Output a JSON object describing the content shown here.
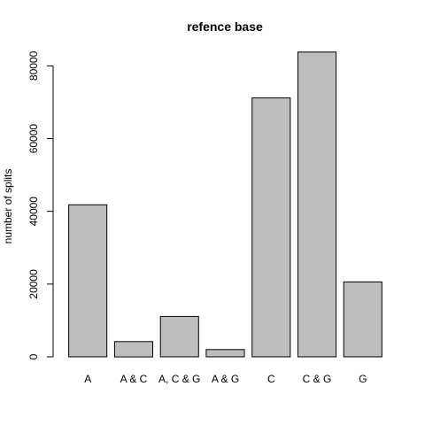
{
  "chart_data": {
    "type": "bar",
    "title": "refence base",
    "xlabel": "",
    "ylabel": "number of splits",
    "categories": [
      "A",
      "A & C",
      "A, C & G",
      "A & G",
      "C",
      "C & G",
      "G"
    ],
    "values": [
      41800,
      4200,
      11100,
      2000,
      71200,
      83800,
      20600
    ],
    "ylim": [
      0,
      84000
    ],
    "yticks": [
      0,
      20000,
      40000,
      60000,
      80000
    ],
    "bar_color": "#bebebe",
    "bar_border": "#000000",
    "grid": false,
    "legend": "none"
  }
}
